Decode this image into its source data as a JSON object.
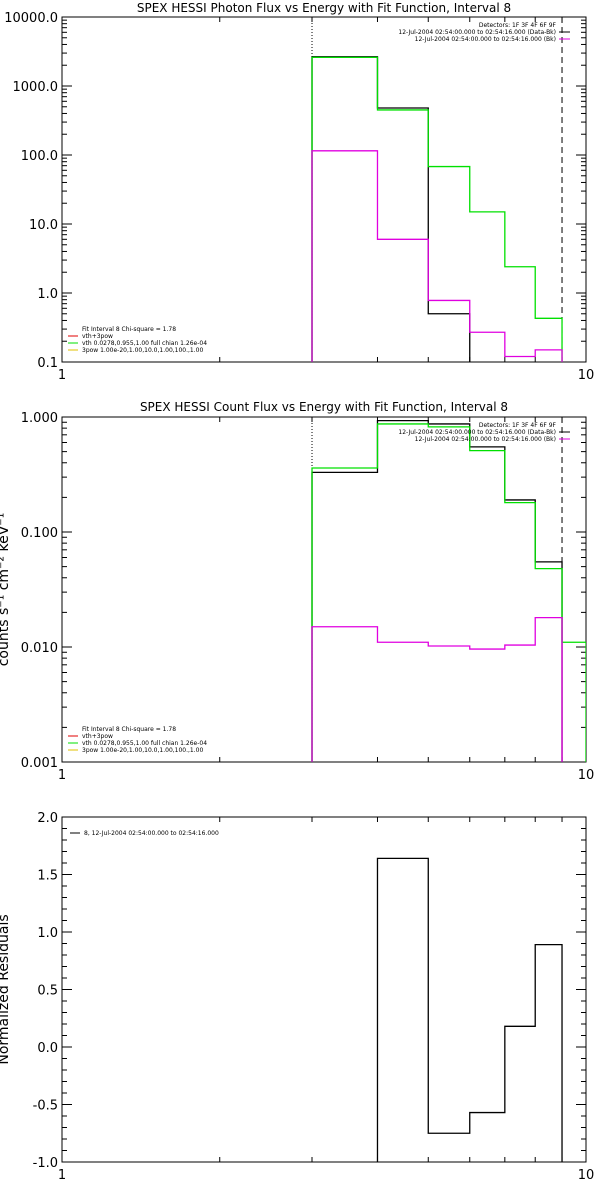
{
  "chart_data": [
    {
      "type": "line",
      "title": "SPEX HESSI Photon Flux vs Energy with Fit Function, Interval 8",
      "xlabel": "",
      "ylabel": "",
      "xscale": "log",
      "yscale": "log",
      "xlim": [
        1,
        10
      ],
      "ylim": [
        0.1,
        10000
      ],
      "x_ticks": [
        "1",
        "10"
      ],
      "y_ticks": [
        {
          "value": 10000,
          "label": "10000.0"
        },
        {
          "value": 1000,
          "label": "1000.0"
        },
        {
          "value": 100,
          "label": "100.0"
        },
        {
          "value": 10,
          "label": "10.0"
        },
        {
          "value": 1,
          "label": "1.0"
        },
        {
          "value": 0.1,
          "label": "0.1"
        }
      ],
      "bin_edges": [
        3,
        4,
        5,
        6,
        7,
        8,
        9
      ],
      "series": [
        {
          "color": "#000000",
          "values": [
            2650,
            480,
            0.5
          ]
        },
        {
          "name": "vth",
          "color": "#00e000",
          "values": [
            2600,
            450,
            68,
            15,
            2.4,
            0.43
          ]
        },
        {
          "name": "3pow",
          "color": "#e000e0",
          "values": [
            115,
            6,
            0.78,
            0.27,
            0.12,
            0.15
          ]
        }
      ],
      "vlines": [
        {
          "x": 3,
          "style": "dotted"
        },
        {
          "x": 9,
          "style": "dashed"
        }
      ],
      "legend_top": {
        "placement": "top-right",
        "lines": [
          "Detectors: 1F 3F 4F 6F 9F",
          "12-Jul-2004 02:54:00.000 to 02:54:16.000 (Data-Bk)",
          "12-Jul-2004 02:54:00.000 to 02:54:16.000 (Bk)"
        ],
        "colors": [
          "",
          "#000000",
          "#e000e0"
        ]
      },
      "legend_bottom": {
        "placement": "bottom-left",
        "lines": [
          "Fit Interval 8   Chi-square = 1.78",
          "vth+3pow",
          "vth 0.0278,0.955,1.00  full chian 1.26e-04",
          "3pow 1.00e-20,1.00,10.0,1.00,100.,1.00"
        ],
        "colors": [
          "",
          "#e00000",
          "#00e000",
          "#e0c000"
        ]
      }
    },
    {
      "type": "line",
      "title": "SPEX HESSI Count Flux vs Energy with Fit Function, Interval 8",
      "xlabel": "",
      "ylabel": "counts s⁻¹ cm⁻² keV⁻¹",
      "xscale": "log",
      "yscale": "log",
      "xlim": [
        1,
        10
      ],
      "ylim": [
        0.001,
        1.0
      ],
      "x_ticks": [
        "1",
        "10"
      ],
      "y_ticks": [
        {
          "value": 1.0,
          "label": "1.000"
        },
        {
          "value": 0.1,
          "label": "0.100"
        },
        {
          "value": 0.01,
          "label": "0.010"
        },
        {
          "value": 0.001,
          "label": "0.001"
        }
      ],
      "bin_edges": [
        3,
        4,
        5,
        6,
        7,
        8,
        9,
        10
      ],
      "series": [
        {
          "color": "#000000",
          "values": [
            0.33,
            0.93,
            0.87,
            0.55,
            0.19,
            0.055
          ]
        },
        {
          "name": "vth",
          "color": "#00e000",
          "values": [
            0.36,
            0.87,
            0.82,
            0.51,
            0.18,
            0.048,
            0.011
          ]
        },
        {
          "name": "3pow",
          "color": "#e000e0",
          "values": [
            0.015,
            0.011,
            0.0102,
            0.0096,
            0.0104,
            0.018
          ]
        }
      ],
      "vlines": [
        {
          "x": 3,
          "style": "dotted"
        },
        {
          "x": 9,
          "style": "dashed"
        }
      ],
      "legend_top": {
        "placement": "top-right",
        "lines": [
          "Detectors: 1F 3F 4F 6F 9F",
          "12-Jul-2004 02:54:00.000 to 02:54:16.000 (Data-Bk)",
          "12-Jul-2004 02:54:00.000 to 02:54:16.000 (Bk)"
        ],
        "colors": [
          "",
          "#000000",
          "#e000e0"
        ]
      },
      "legend_bottom": {
        "placement": "bottom-left",
        "lines": [
          "Fit Interval 8   Chi-square = 1.78",
          "vth+3pow",
          "vth 0.0278,0.955,1.00  full chian 1.26e-04",
          "3pow 1.00e-20,1.00,10.0,1.00,100.,1.00"
        ],
        "colors": [
          "",
          "#e00000",
          "#00e000",
          "#e0c000"
        ]
      }
    },
    {
      "type": "line",
      "title": "",
      "xlabel": "",
      "ylabel": "Normalized Residuals",
      "xscale": "log",
      "yscale": "linear",
      "xlim": [
        1,
        10
      ],
      "ylim": [
        -1.0,
        2.0
      ],
      "x_ticks": [
        "1",
        "10"
      ],
      "y_ticks": [
        {
          "value": 2.0,
          "label": "2.0"
        },
        {
          "value": 1.5,
          "label": "1.5"
        },
        {
          "value": 1.0,
          "label": "1.0"
        },
        {
          "value": 0.5,
          "label": "0.5"
        },
        {
          "value": 0.0,
          "label": "0.0"
        },
        {
          "value": -0.5,
          "label": "-0.5"
        },
        {
          "value": -1.0,
          "label": "-1.0"
        }
      ],
      "bin_edges": [
        4,
        5,
        6,
        7,
        8,
        9
      ],
      "series": [
        {
          "color": "#000000",
          "values": [
            1.64,
            -0.75,
            -0.57,
            0.18,
            0.89
          ]
        }
      ],
      "vlines": [],
      "legend_top": {
        "placement": "top-left",
        "lines": [
          "8, 12-Jul-2004 02:54:00.000 to 02:54:16.000"
        ],
        "colors": [
          "#000000"
        ]
      },
      "legend_bottom": {
        "placement": "bottom-left",
        "lines": [],
        "colors": []
      }
    }
  ]
}
